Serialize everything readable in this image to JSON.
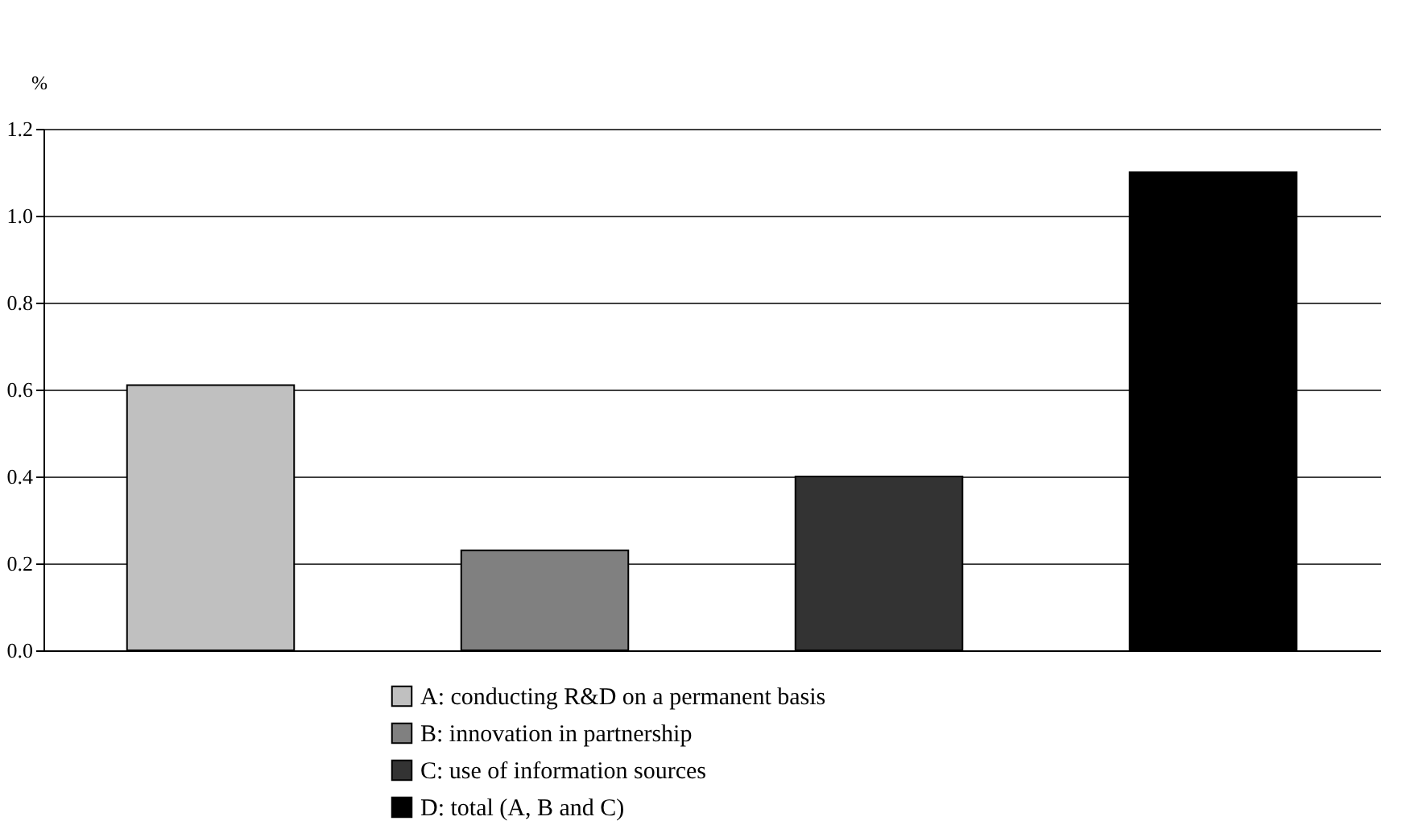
{
  "chart_data": {
    "type": "bar",
    "ylabel": "%",
    "categories": [
      null,
      null,
      null,
      null
    ],
    "series": [
      {
        "name": "A: conducting R&D on a permanent basis",
        "color": "#c0c0c0",
        "values": [
          0.61,
          null,
          null,
          null
        ]
      },
      {
        "name": "B: innovation in partnership",
        "color": "#808080",
        "values": [
          null,
          0.23,
          null,
          null
        ]
      },
      {
        "name": "C: use of information sources",
        "color": "#333333",
        "values": [
          null,
          null,
          0.4,
          null
        ]
      },
      {
        "name": "D: total (A, B and C)",
        "color": "#000000",
        "values": [
          null,
          null,
          null,
          1.1
        ]
      }
    ],
    "ylim": [
      0,
      1.2
    ],
    "yticks": [
      {
        "value": 0,
        "label": "0.0"
      },
      {
        "value": 0.2,
        "label": "0.2"
      },
      {
        "value": 0.4,
        "label": "0.4"
      },
      {
        "value": 0.6,
        "label": "0.6"
      },
      {
        "value": 0.8,
        "label": "0.8"
      },
      {
        "value": 1,
        "label": "1.0"
      },
      {
        "value": 1.2,
        "label": "1.2"
      }
    ],
    "grid": "y",
    "legend": "bottom",
    "tick_labels": "y"
  }
}
